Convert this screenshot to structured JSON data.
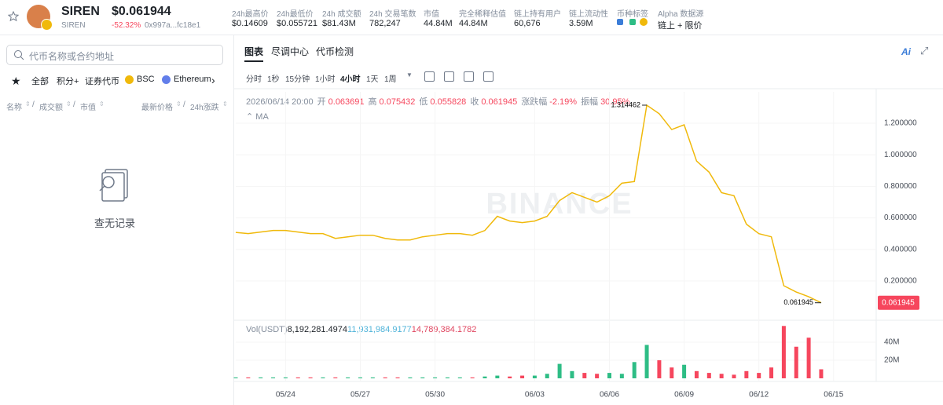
{
  "header": {
    "name": "SIREN",
    "price": "$0.061944",
    "symbol": "SIREN",
    "change": "-52.32%",
    "address": "0x997a...fc18e1",
    "stats": [
      {
        "label": "24h最高价",
        "value": "$0.14609"
      },
      {
        "label": "24h最低价",
        "value": "$0.055721"
      },
      {
        "label": "24h 成交额",
        "value": "$81.43M"
      },
      {
        "label": "24h 交易笔数",
        "value": "782,247"
      },
      {
        "label": "市值",
        "value": "44.84M"
      },
      {
        "label": "完全稀释估值",
        "value": "44.84M"
      },
      {
        "label": "链上持有用户",
        "value": "60,676"
      },
      {
        "label": "链上流动性",
        "value": "3.59M"
      },
      {
        "label": "币种标签"
      },
      {
        "label": "Alpha 数据源",
        "value": "链上 + 限价"
      }
    ]
  },
  "sidebar": {
    "search": "代币名称或合约地址",
    "tabs": [
      "全部",
      "积分+",
      "证券代币",
      "BSC",
      "Ethereum"
    ],
    "sort_left": [
      "名称",
      "成交额",
      "市值"
    ],
    "sort_right": [
      "最新价格",
      "24h涨跌"
    ],
    "empty": "查无记录"
  },
  "main": {
    "tabs": [
      "图表",
      "尽调中心",
      "代币检测"
    ],
    "ai": "Ai",
    "intervals": [
      "分时",
      "1秒",
      "15分钟",
      "1小时",
      "4小时",
      "1天",
      "1周"
    ]
  },
  "ohlc": {
    "datetime": "2026/06/14 20:00",
    "items": [
      {
        "label": "开",
        "value": "0.063691"
      },
      {
        "label": "高",
        "value": "0.075432"
      },
      {
        "label": "低",
        "value": "0.055828"
      },
      {
        "label": "收",
        "value": "0.061945"
      },
      {
        "label": "涨跌幅",
        "value": "-2.19%"
      },
      {
        "label": "振幅",
        "value": "30.95%"
      }
    ]
  },
  "chart_data": {
    "type": "line",
    "ma_label": "MA",
    "watermark": "BINANCE",
    "color": "#f0b90b",
    "grid": true,
    "categories": [
      null,
      null,
      null,
      null,
      "05/24",
      null,
      null,
      null,
      null,
      null,
      "05/27",
      null,
      null,
      null,
      null,
      null,
      "05/30",
      null,
      null,
      null,
      null,
      null,
      null,
      null,
      "06/03",
      null,
      null,
      null,
      null,
      null,
      "06/06",
      null,
      null,
      null,
      null,
      null,
      "06/09",
      null,
      null,
      null,
      null,
      null,
      "06/12",
      null,
      null,
      null,
      null,
      null,
      "06/15"
    ],
    "values": [
      0.508,
      0.5,
      0.51,
      0.52,
      0.52,
      0.51,
      0.5,
      0.5,
      0.47,
      0.48,
      0.49,
      0.49,
      0.47,
      0.46,
      0.46,
      0.48,
      0.49,
      0.5,
      0.5,
      0.49,
      0.52,
      0.61,
      0.58,
      0.57,
      0.58,
      0.61,
      0.71,
      0.76,
      0.73,
      0.7,
      0.74,
      0.82,
      0.83,
      1.314462,
      1.26,
      1.16,
      1.19,
      0.96,
      0.89,
      0.76,
      0.74,
      0.56,
      0.5,
      0.48,
      0.17,
      0.13,
      0.1,
      0.061945,
      null
    ],
    "ylim": [
      -0.034,
      1.399
    ],
    "yticks": [
      {
        "value": 0.2,
        "label": "0.200000"
      },
      {
        "value": 0.4,
        "label": "0.400000"
      },
      {
        "value": 0.6,
        "label": "0.600000"
      },
      {
        "value": 0.8,
        "label": "0.800000"
      },
      {
        "value": 1.0,
        "label": "1.000000"
      },
      {
        "value": 1.2,
        "label": "1.200000"
      }
    ],
    "volume": {
      "label": "Vol(USDT)",
      "ma_values": [
        "8,192,281.4974",
        "11,931,984.9177",
        "14,789,384.1782"
      ],
      "ma_colors": [
        "#1e2329",
        "#4fb3d9",
        "#e0455f"
      ],
      "up_color": "#2ebd85",
      "down_color": "#f6465d",
      "values": [
        1,
        1,
        1,
        1,
        1,
        1,
        1,
        1,
        1,
        1,
        1,
        1,
        1,
        1,
        1,
        1,
        1,
        1,
        1,
        1,
        2,
        3,
        2,
        3,
        3,
        5,
        16,
        8,
        6,
        5,
        6,
        5,
        18,
        37,
        20,
        12,
        15,
        8,
        6,
        5,
        4,
        8,
        6,
        12,
        58,
        35,
        45,
        10,
        null
      ],
      "ylim": [
        0,
        62.6
      ],
      "yticks": [
        {
          "value": 20,
          "label": "20M"
        },
        {
          "value": 40,
          "label": "40M"
        }
      ]
    }
  }
}
